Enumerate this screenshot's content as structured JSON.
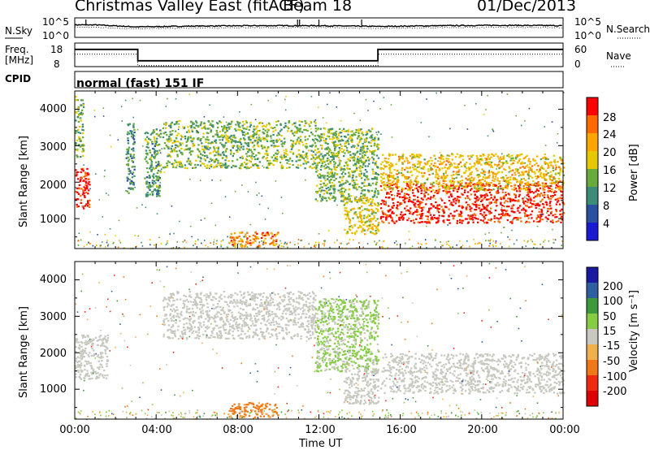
{
  "header": {
    "site_title": "Christmas Valley East (fitACF)",
    "beam_label": "Beam 18",
    "date": "01/Dec/2013"
  },
  "panels": {
    "nsky": {
      "label": "N.Sky",
      "tick_top": "10^5",
      "tick_bottom": "10^0",
      "right_label": "N.Search",
      "right_tick_top": "10^5",
      "right_tick_bottom": "10^0"
    },
    "freq": {
      "label_line1": "Freq.",
      "label_line2": "[MHz]",
      "tick_top": "18",
      "tick_bottom": "8",
      "right_label": "Nave",
      "right_tick_top": "60",
      "right_tick_bottom": "0"
    },
    "cpid": {
      "label": "CPID",
      "mode": "normal (fast) 151 IF"
    }
  },
  "axes": {
    "ylabel": "Slant Range [km]",
    "xlabel": "Time UT",
    "y_ticks": [
      "4000",
      "3000",
      "2000",
      "1000"
    ],
    "x_ticks": [
      "00:00",
      "04:00",
      "08:00",
      "12:00",
      "16:00",
      "20:00",
      "00:00"
    ]
  },
  "colorbars": {
    "power": {
      "label": "Power [dB]",
      "ticks": [
        "28",
        "24",
        "20",
        "16",
        "12",
        "8",
        "4"
      ],
      "colors": [
        "#ff0000",
        "#ff6a00",
        "#ffa500",
        "#e6c800",
        "#6aaa3c",
        "#3c8c78",
        "#2a50a0",
        "#1a1ad2"
      ]
    },
    "velocity": {
      "label": "Velocity [m s⁻¹]",
      "ticks": [
        "200",
        "100",
        "50",
        "15",
        "-15",
        "-50",
        "-100",
        "-200"
      ],
      "colors": [
        "#1a1aa0",
        "#2f5fa0",
        "#3c9a3c",
        "#86cc45",
        "#c8c8c0",
        "#f0b050",
        "#f07818",
        "#ee2a10",
        "#e00000"
      ]
    }
  },
  "chart_data": [
    {
      "type": "line",
      "title": "N.Sky / N.Search",
      "x": [
        0,
        1,
        3,
        6,
        9,
        12,
        15,
        18,
        21,
        24
      ],
      "series": [
        {
          "name": "N.Sky",
          "values": [
            3.2,
            3.2,
            2.7,
            2.9,
            3.0,
            3.0,
            2.8,
            3.0,
            3.1,
            3.0
          ]
        },
        {
          "name": "N.Search",
          "values": [
            2.6,
            2.6,
            2.2,
            2.4,
            2.5,
            2.5,
            2.3,
            2.5,
            2.6,
            2.5
          ]
        }
      ],
      "ylim": [
        0,
        5
      ]
    },
    {
      "type": "line",
      "title": "Freq. [MHz] / Nave",
      "x": [
        0,
        3.1,
        3.1,
        14.9,
        14.9,
        24
      ],
      "series": [
        {
          "name": "Freq.",
          "values": [
            15.3,
            15.3,
            10.5,
            10.5,
            15.3,
            15.3
          ]
        },
        {
          "name": "Nave",
          "values": [
            31,
            31,
            21,
            21,
            31,
            31
          ]
        }
      ],
      "ylim": [
        8,
        18
      ]
    },
    {
      "type": "heatmap",
      "title": "Power [dB]",
      "xlabel": "Time UT",
      "ylabel": "Slant Range [km]",
      "xlim": [
        0,
        24
      ],
      "ylim": [
        180,
        4500
      ],
      "bands": [
        {
          "t0": 0.0,
          "t1": 0.7,
          "r0": 1300,
          "r1": 2400,
          "power": 28
        },
        {
          "t0": 0.0,
          "t1": 0.4,
          "r0": 2700,
          "r1": 4400,
          "power": 12
        },
        {
          "t0": 2.5,
          "t1": 2.9,
          "r0": 1700,
          "r1": 3700,
          "power": 8
        },
        {
          "t0": 3.4,
          "t1": 4.2,
          "r0": 1600,
          "r1": 3500,
          "power": 10
        },
        {
          "t0": 4.3,
          "t1": 11.8,
          "r0": 2400,
          "r1": 3700,
          "power": 12
        },
        {
          "t0": 11.8,
          "t1": 14.9,
          "r0": 1500,
          "r1": 3500,
          "power": 12
        },
        {
          "t0": 13.2,
          "t1": 14.9,
          "r0": 600,
          "r1": 1600,
          "power": 16
        },
        {
          "t0": 15.0,
          "t1": 24.0,
          "r0": 900,
          "r1": 2000,
          "power": 28
        },
        {
          "t0": 15.0,
          "t1": 24.0,
          "r0": 1800,
          "r1": 2800,
          "power": 18
        },
        {
          "t0": 7.5,
          "t1": 10.0,
          "r0": 250,
          "r1": 650,
          "power": 22
        }
      ]
    },
    {
      "type": "heatmap",
      "title": "Velocity [m s⁻¹]",
      "xlabel": "Time UT",
      "ylabel": "Slant Range [km]",
      "xlim": [
        0,
        24
      ],
      "ylim": [
        180,
        4500
      ],
      "bands": [
        {
          "t0": 0.0,
          "t1": 1.6,
          "r0": 1300,
          "r1": 2500,
          "velocity": 0
        },
        {
          "t0": 4.3,
          "t1": 11.8,
          "r0": 2400,
          "r1": 3700,
          "velocity": 0
        },
        {
          "t0": 11.8,
          "t1": 14.9,
          "r0": 1500,
          "r1": 3500,
          "velocity": 20
        },
        {
          "t0": 13.2,
          "t1": 14.9,
          "r0": 600,
          "r1": 1600,
          "velocity": 0
        },
        {
          "t0": 15.0,
          "t1": 24.0,
          "r0": 900,
          "r1": 2000,
          "velocity": 0
        },
        {
          "t0": 7.5,
          "t1": 10.0,
          "r0": 250,
          "r1": 650,
          "velocity": -60
        }
      ]
    }
  ]
}
